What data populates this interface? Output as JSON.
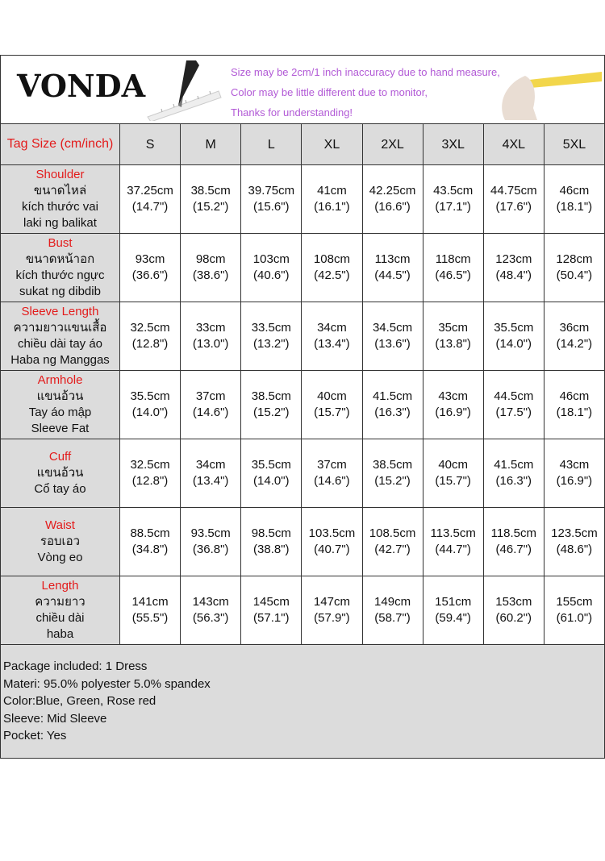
{
  "banner": {
    "logo": "VONDA",
    "notes": [
      "Size may be 2cm/1 inch inaccuracy due to hand measure,",
      "Color may be little different due to monitor,",
      "Thanks for understanding!"
    ]
  },
  "table": {
    "header": "Tag Size (cm/inch)",
    "sizes": [
      "S",
      "M",
      "L",
      "XL",
      "2XL",
      "3XL",
      "4XL",
      "5XL"
    ],
    "rows": [
      {
        "label": "Shoulder",
        "translations": [
          "ขนาดไหล่",
          "kích thước vai",
          "laki ng balikat"
        ],
        "cm": [
          "37.25cm",
          "38.5cm",
          "39.75cm",
          "41cm",
          "42.25cm",
          "43.5cm",
          "44.75cm",
          "46cm"
        ],
        "inch": [
          "(14.7\")",
          "(15.2\")",
          "(15.6\")",
          "(16.1\")",
          "(16.6\")",
          "(17.1\")",
          "(17.6\")",
          "(18.1\")"
        ]
      },
      {
        "label": "Bust",
        "translations": [
          "ขนาดหน้าอก",
          "kích thước ngực",
          "sukat ng dibdib"
        ],
        "cm": [
          "93cm",
          "98cm",
          "103cm",
          "108cm",
          "113cm",
          "118cm",
          "123cm",
          "128cm"
        ],
        "inch": [
          "(36.6\")",
          "(38.6\")",
          "(40.6\")",
          "(42.5\")",
          "(44.5\")",
          "(46.5\")",
          "(48.4\")",
          "(50.4\")"
        ]
      },
      {
        "label": "Sleeve Length",
        "translations": [
          "ความยาวแขนเสื้อ",
          "chiều dài tay áo",
          "Haba ng Manggas"
        ],
        "cm": [
          "32.5cm",
          "33cm",
          "33.5cm",
          "34cm",
          "34.5cm",
          "35cm",
          "35.5cm",
          "36cm"
        ],
        "inch": [
          "(12.8\")",
          "(13.0\")",
          "(13.2\")",
          "(13.4\")",
          "(13.6\")",
          "(13.8\")",
          "(14.0\")",
          "(14.2\")"
        ]
      },
      {
        "label": "Armhole",
        "translations": [
          "แขนอ้วน",
          "Tay áo mập",
          "Sleeve Fat"
        ],
        "cm": [
          "35.5cm",
          "37cm",
          "38.5cm",
          "40cm",
          "41.5cm",
          "43cm",
          "44.5cm",
          "46cm"
        ],
        "inch": [
          "(14.0\")",
          "(14.6\")",
          "(15.2\")",
          "(15.7\")",
          "(16.3\")",
          "(16.9\")",
          "(17.5\")",
          "(18.1\")"
        ]
      },
      {
        "label": "Cuff",
        "translations": [
          "แขนอ้วน",
          "Cổ tay áo"
        ],
        "cm": [
          "32.5cm",
          "34cm",
          "35.5cm",
          "37cm",
          "38.5cm",
          "40cm",
          "41.5cm",
          "43cm"
        ],
        "inch": [
          "(12.8\")",
          "(13.4\")",
          "(14.0\")",
          "(14.6\")",
          "(15.2\")",
          "(15.7\")",
          "(16.3\")",
          "(16.9\")"
        ]
      },
      {
        "label": "Waist",
        "translations": [
          "รอบเอว",
          "Vòng eo"
        ],
        "cm": [
          "88.5cm",
          "93.5cm",
          "98.5cm",
          "103.5cm",
          "108.5cm",
          "113.5cm",
          "118.5cm",
          "123.5cm"
        ],
        "inch": [
          "(34.8\")",
          "(36.8\")",
          "(38.8\")",
          "(40.7\")",
          "(42.7\")",
          "(44.7\")",
          "(46.7\")",
          "(48.6\")"
        ]
      },
      {
        "label": "Length",
        "translations": [
          "ความยาว",
          "chiều dài",
          "haba"
        ],
        "cm": [
          "141cm",
          "143cm",
          "145cm",
          "147cm",
          "149cm",
          "151cm",
          "153cm",
          "155cm"
        ],
        "inch": [
          "(55.5\")",
          "(56.3\")",
          "(57.1\")",
          "(57.9\")",
          "(58.7\")",
          "(59.4\")",
          "(60.2\")",
          "(61.0\")"
        ]
      }
    ]
  },
  "footer": [
    "Package included: 1 Dress",
    "Materi: 95.0% polyester 5.0% spandex",
    "Color:Blue, Green, Rose red",
    "Sleeve: Mid Sleeve",
    "Pocket: Yes"
  ]
}
